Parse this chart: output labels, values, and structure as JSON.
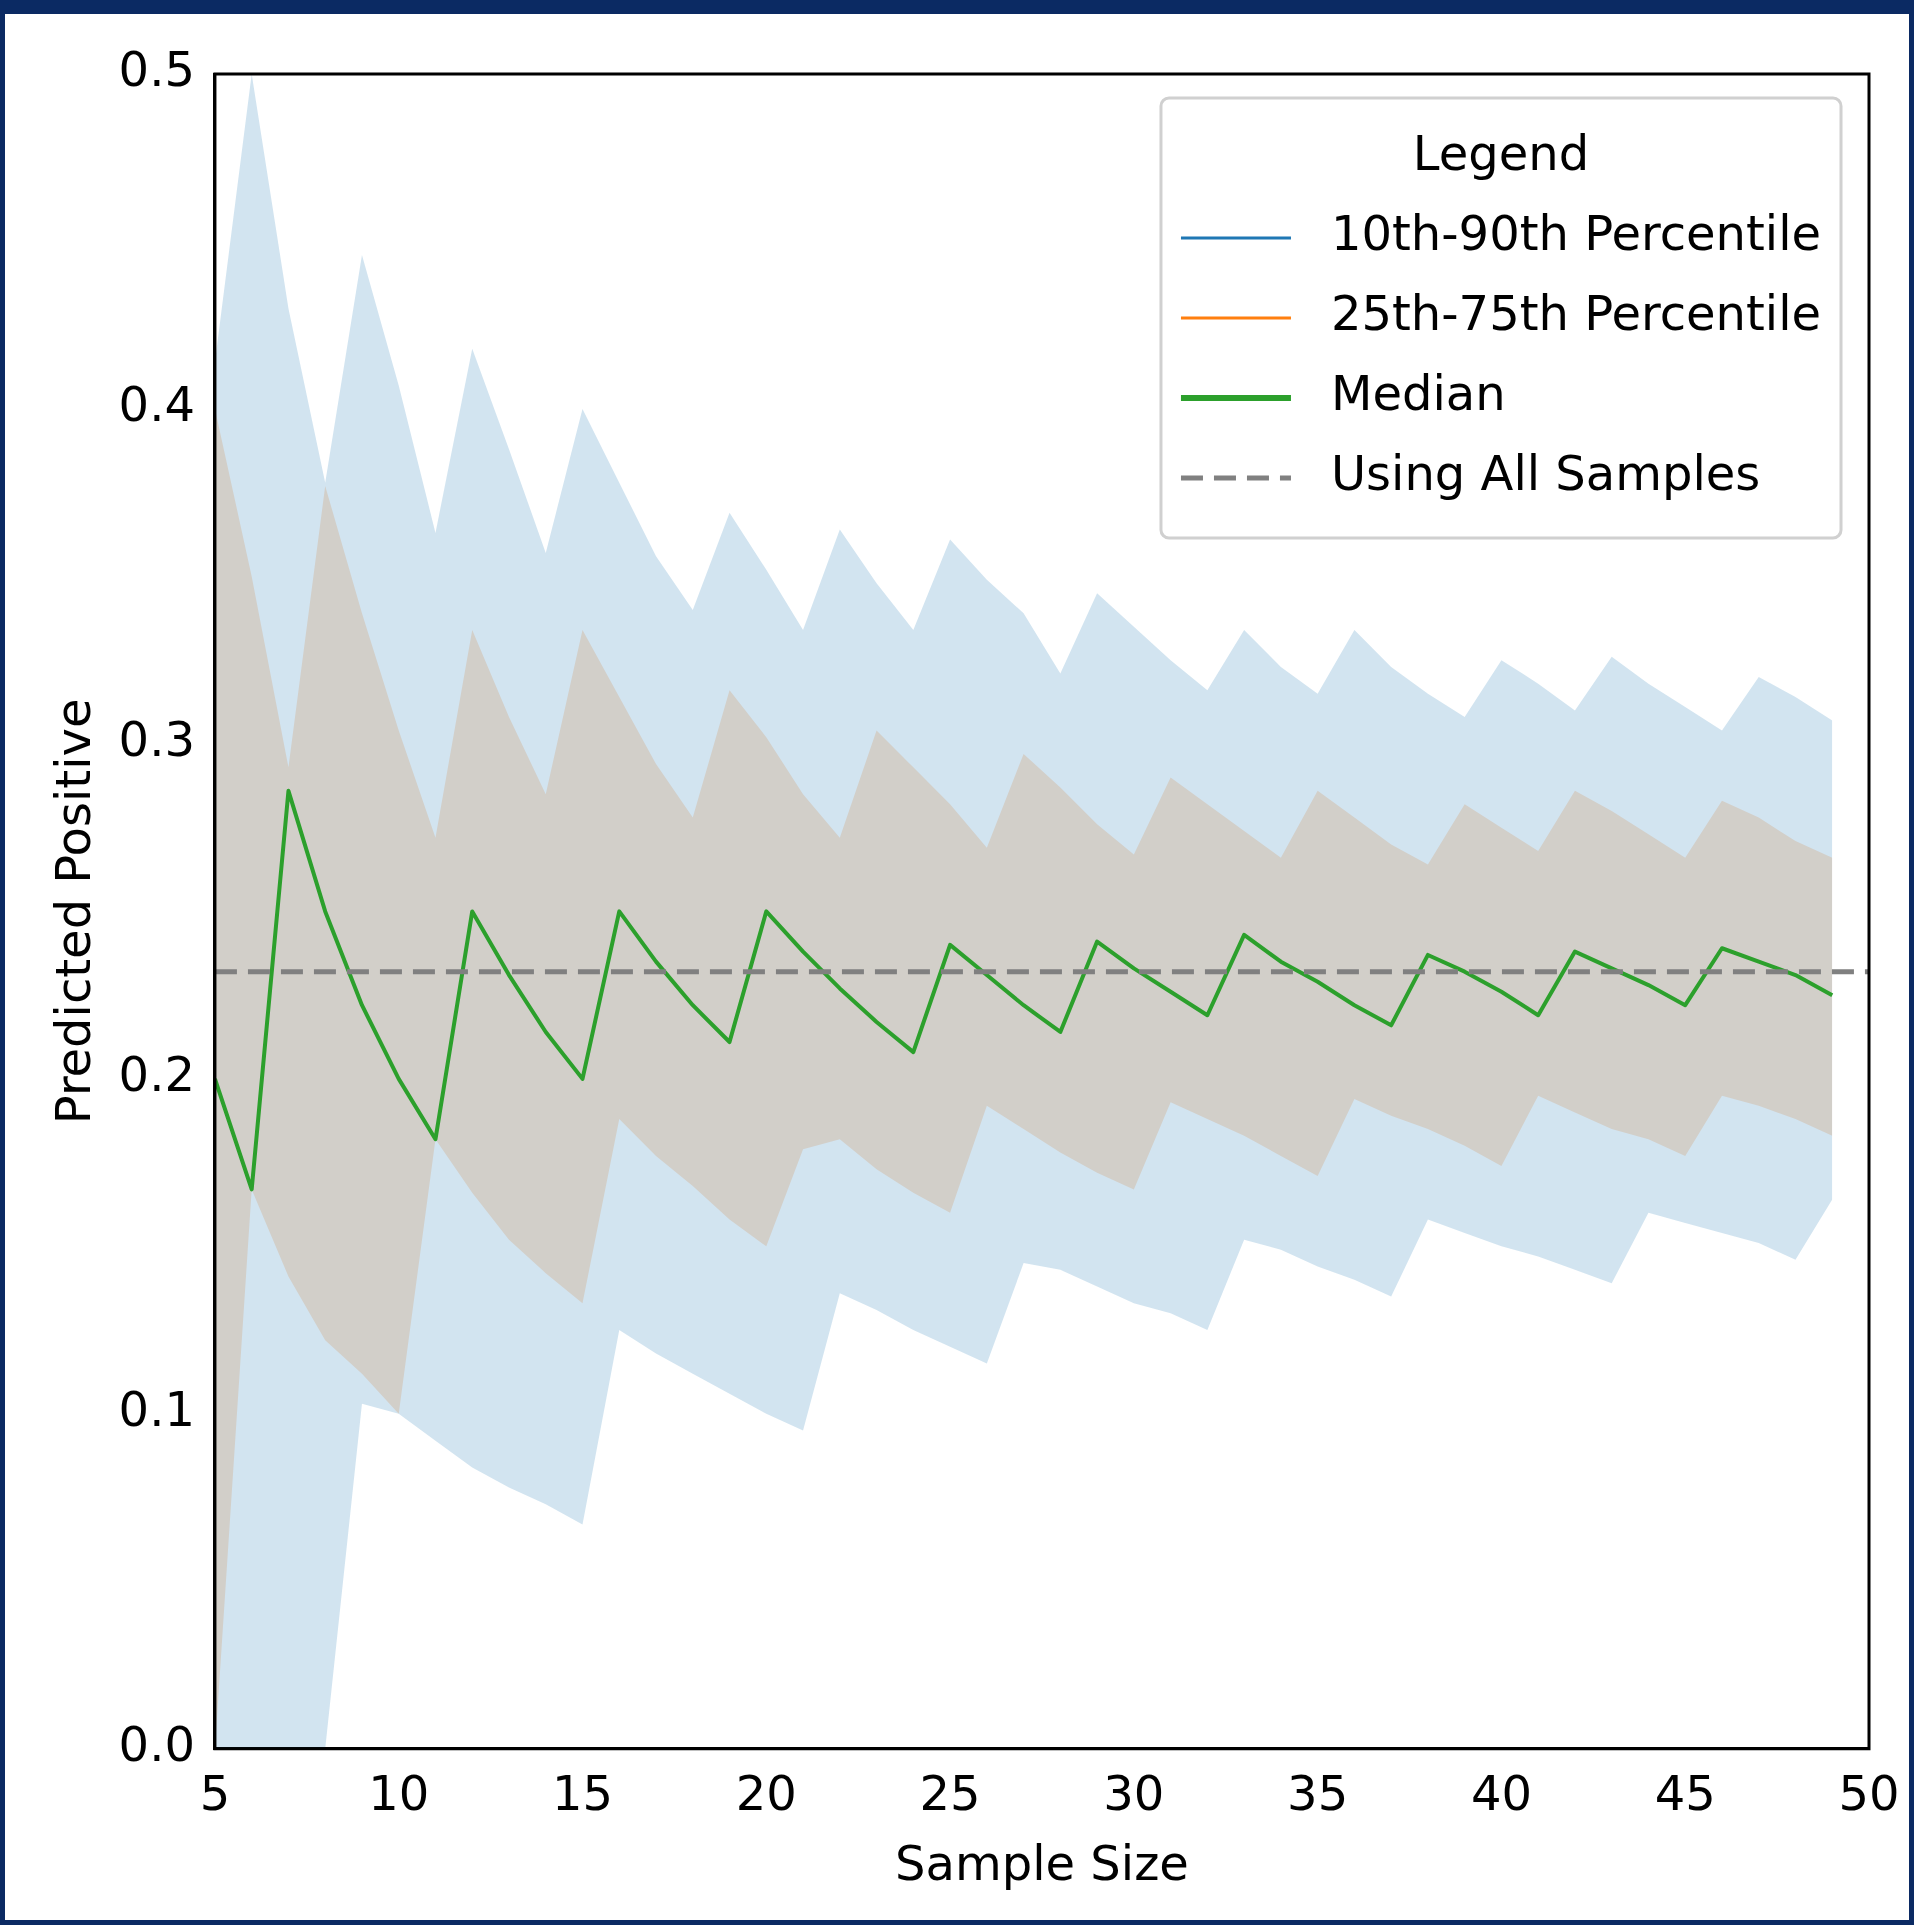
{
  "chart_data": {
    "type": "line",
    "xlabel": "Sample Size",
    "ylabel": "Predicted Positive",
    "legend_title": "Legend",
    "legend": "top right",
    "grid": false,
    "x": [
      5,
      6,
      7,
      8,
      9,
      10,
      11,
      12,
      13,
      14,
      15,
      16,
      17,
      18,
      19,
      20,
      21,
      22,
      23,
      24,
      25,
      26,
      27,
      28,
      29,
      30,
      31,
      32,
      33,
      34,
      35,
      36,
      37,
      38,
      39,
      40,
      41,
      42,
      43,
      44,
      45,
      46,
      47,
      48,
      49
    ],
    "xlim": [
      5,
      50
    ],
    "xticks": [
      5,
      10,
      15,
      20,
      25,
      30,
      35,
      40,
      45,
      50
    ],
    "ylim": [
      0,
      0.5
    ],
    "yticks": [
      {
        "value": 0,
        "label": "0.0"
      },
      0.1,
      0.2,
      0.3,
      0.4,
      0.5
    ],
    "series": [
      {
        "name": "10th-90th Percentile",
        "color": "#1f77b4",
        "values": [
          null,
          null,
          null,
          null,
          null,
          null,
          null,
          null,
          null,
          null,
          null,
          null,
          null,
          null,
          null,
          null,
          null,
          null,
          null,
          null,
          null,
          null,
          null,
          null,
          null,
          null,
          null,
          null,
          null,
          null,
          null,
          null,
          null,
          null,
          null,
          null,
          null,
          null,
          null,
          null,
          null,
          null,
          null,
          null,
          null
        ],
        "lower": [
          0,
          0,
          0,
          0,
          0.103,
          0.1,
          0.092,
          0.084,
          0.078,
          0.073,
          0.067,
          0.125,
          0.118,
          0.112,
          0.106,
          0.1,
          0.095,
          0.136,
          0.131,
          0.125,
          0.12,
          0.115,
          0.145,
          0.143,
          0.138,
          0.133,
          0.13,
          0.125,
          0.152,
          0.149,
          0.144,
          0.14,
          0.135,
          0.158,
          0.154,
          0.15,
          0.147,
          0.143,
          0.139,
          0.16,
          0.157,
          0.154,
          0.151,
          0.146,
          0.164
        ],
        "upper": [
          0.414,
          0.5,
          0.43,
          0.378,
          0.446,
          0.407,
          0.363,
          0.418,
          0.388,
          0.357,
          0.4,
          0.378,
          0.356,
          0.34,
          0.369,
          0.352,
          0.334,
          0.364,
          0.348,
          0.334,
          0.361,
          0.349,
          0.339,
          0.321,
          0.345,
          0.335,
          0.325,
          0.316,
          0.334,
          0.323,
          0.315,
          0.334,
          0.323,
          0.315,
          0.308,
          0.325,
          0.318,
          0.31,
          0.326,
          0.318,
          0.311,
          0.304,
          0.32,
          0.314,
          0.307
        ]
      },
      {
        "name": "25th-75th Percentile",
        "color": "#ff7f0e",
        "values": [
          null,
          null,
          null,
          null,
          null,
          null,
          null,
          null,
          null,
          null,
          null,
          null,
          null,
          null,
          null,
          null,
          null,
          null,
          null,
          null,
          null,
          null,
          null,
          null,
          null,
          null,
          null,
          null,
          null,
          null,
          null,
          null,
          null,
          null,
          null,
          null,
          null,
          null,
          null,
          null,
          null,
          null,
          null,
          null,
          null
        ],
        "lower": [
          0,
          0.167,
          0.141,
          0.122,
          0.112,
          0.1,
          0.182,
          0.166,
          0.152,
          0.142,
          0.133,
          0.188,
          0.177,
          0.168,
          0.158,
          0.15,
          0.179,
          0.182,
          0.173,
          0.166,
          0.16,
          0.192,
          0.185,
          0.178,
          0.172,
          0.167,
          0.193,
          0.188,
          0.183,
          0.177,
          0.171,
          0.194,
          0.189,
          0.185,
          0.18,
          0.174,
          0.195,
          0.19,
          0.185,
          0.182,
          0.177,
          0.195,
          0.192,
          0.188,
          0.183
        ],
        "upper": [
          0.4,
          0.35,
          0.293,
          0.377,
          0.339,
          0.304,
          0.272,
          0.334,
          0.308,
          0.285,
          0.334,
          0.314,
          0.294,
          0.278,
          0.316,
          0.302,
          0.285,
          0.272,
          0.304,
          0.293,
          0.282,
          0.269,
          0.297,
          0.287,
          0.276,
          0.267,
          0.29,
          0.282,
          0.274,
          0.266,
          0.286,
          0.278,
          0.27,
          0.264,
          0.282,
          0.275,
          0.268,
          0.286,
          0.28,
          0.273,
          0.266,
          0.283,
          0.278,
          0.271,
          0.266
        ]
      },
      {
        "name": "Median",
        "color": "#2ca02c",
        "values": [
          0.2,
          0.167,
          0.286,
          0.25,
          0.222,
          0.2,
          0.182,
          0.25,
          0.231,
          0.214,
          0.2,
          0.25,
          0.235,
          0.222,
          0.211,
          0.25,
          0.238,
          0.227,
          0.217,
          0.208,
          0.24,
          0.231,
          0.222,
          0.214,
          0.241,
          0.233,
          0.226,
          0.219,
          0.243,
          0.235,
          0.229,
          0.222,
          0.216,
          0.237,
          0.232,
          0.226,
          0.219,
          0.238,
          0.233,
          0.228,
          0.222,
          0.239,
          0.235,
          0.231,
          0.225
        ]
      }
    ],
    "ref_lines": [
      {
        "axis": "y",
        "value": 0.232,
        "label": "Using All Samples",
        "color": "#808080",
        "line_style": "dashed"
      }
    ]
  }
}
